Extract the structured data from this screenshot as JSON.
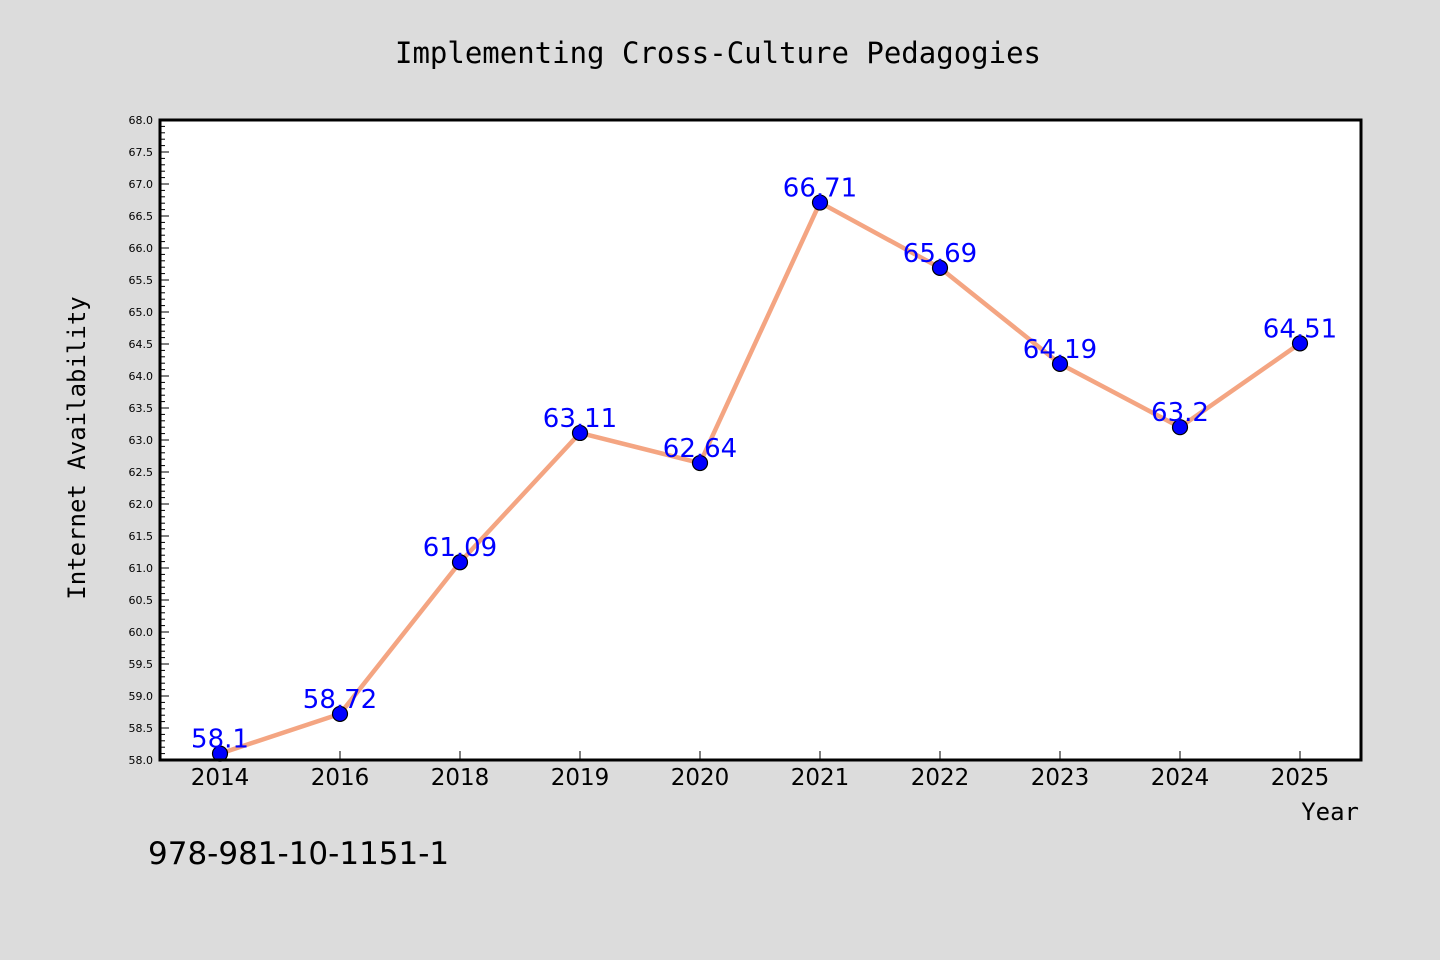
{
  "chart_data": {
    "type": "line",
    "title": "Implementing Cross-Culture Pedagogies",
    "xlabel": "Year",
    "ylabel": "Internet Availability",
    "categories": [
      "2014",
      "2016",
      "2018",
      "2019",
      "2020",
      "2021",
      "2022",
      "2023",
      "2024",
      "2025"
    ],
    "series": [
      {
        "values": [
          58.1,
          58.72,
          61.09,
          63.11,
          62.64,
          66.71,
          65.69,
          64.19,
          63.2,
          64.51
        ],
        "data_labels": [
          "58.1",
          "58.72",
          "61.09",
          "63.11",
          "62.64",
          "66.71",
          "65.69",
          "64.19",
          "63.2",
          "64.51"
        ]
      }
    ],
    "ylim": [
      58.0,
      68.0
    ],
    "ytick_labels": [
      "58.0",
      "58.5",
      "59.0",
      "59.5",
      "60.0",
      "60.5",
      "61.0",
      "61.5",
      "62.0",
      "62.5",
      "63.0",
      "63.5",
      "64.0",
      "64.5",
      "65.0",
      "65.5",
      "66.0",
      "66.5",
      "67.0",
      "67.5",
      "68.0"
    ],
    "grid": false,
    "legend": "none",
    "colors": {
      "background": "#dcdcdc",
      "plot_area": "#ffffff",
      "line": "#f4a582",
      "marker": "#0000ff",
      "data_label": "#0000ff"
    }
  },
  "footer": {
    "isbn": "978-981-10-1151-1"
  }
}
